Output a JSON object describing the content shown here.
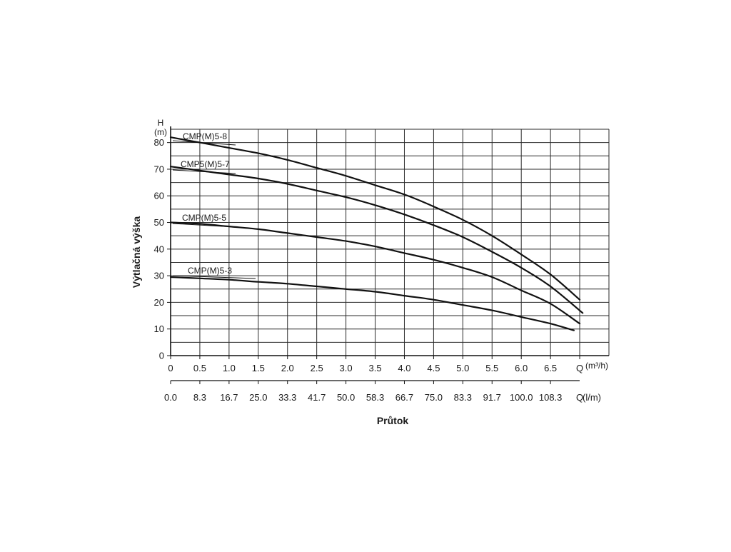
{
  "chart_data": {
    "type": "line",
    "xlabel": "Průtok",
    "ylabel": "Výtlačná výška",
    "y_axis_symbol": "H",
    "y_unit": "(m)",
    "x_axis_symbol": "Q",
    "x_unit_primary": "(m³/h)",
    "x_unit_secondary": "(l/m)",
    "xlim": [
      0,
      7.5
    ],
    "ylim": [
      0,
      85
    ],
    "grid": true,
    "legend": "inline labels on curves",
    "y_ticks": [
      "0",
      "10",
      "20",
      "30",
      "40",
      "50",
      "60",
      "70",
      "80"
    ],
    "x_ticks_primary": [
      "0",
      "0.5",
      "1.0",
      "1.5",
      "2.0",
      "2.5",
      "3.0",
      "3.5",
      "4.0",
      "4.5",
      "5.0",
      "5.5",
      "6.0",
      "6.5",
      "Q"
    ],
    "x_ticks_secondary": [
      "0.0",
      "8.3",
      "16.7",
      "25.0",
      "33.3",
      "41.7",
      "50.0",
      "58.3",
      "66.7",
      "75.0",
      "83.3",
      "91.7",
      "100.0",
      "108.3",
      "Q"
    ],
    "series": [
      {
        "name": "CMP(M)5-8",
        "color": "#111111",
        "x": [
          0,
          0.5,
          1.0,
          1.5,
          2.0,
          2.5,
          3.0,
          3.5,
          4.0,
          4.5,
          5.0,
          5.5,
          6.0,
          6.5,
          7.0
        ],
        "y": [
          82,
          80,
          78,
          76,
          73.5,
          70.5,
          67.5,
          64,
          60.5,
          56,
          51,
          45,
          38,
          30.5,
          21
        ]
      },
      {
        "name": "CMP5(M)5-7",
        "color": "#111111",
        "x": [
          0,
          0.5,
          1.0,
          1.5,
          2.0,
          2.5,
          3.0,
          3.5,
          4.0,
          4.5,
          5.0,
          5.5,
          6.0,
          6.5,
          7.05
        ],
        "y": [
          71,
          69.5,
          68,
          66.5,
          64.5,
          62,
          59.5,
          56.5,
          53,
          49,
          44.5,
          39,
          33,
          26,
          16
        ]
      },
      {
        "name": "CMP(M)5-5",
        "color": "#111111",
        "x": [
          0,
          0.5,
          1.0,
          1.5,
          2.0,
          2.5,
          3.0,
          3.5,
          4.0,
          4.5,
          5.0,
          5.5,
          6.0,
          6.5,
          7.0
        ],
        "y": [
          50,
          49.5,
          48.5,
          47.5,
          46,
          44.5,
          43,
          41,
          38.5,
          36,
          33,
          29.5,
          24.5,
          19.5,
          12
        ]
      },
      {
        "name": "CMP(M)5-3",
        "color": "#111111",
        "x": [
          0,
          0.5,
          1.0,
          1.5,
          2.0,
          2.5,
          3.0,
          3.5,
          4.0,
          4.5,
          5.0,
          5.5,
          6.0,
          6.5,
          6.9
        ],
        "y": [
          29.5,
          29,
          28.5,
          27.7,
          27,
          26,
          25,
          24,
          22.5,
          21,
          19,
          17,
          14.5,
          12,
          9.5
        ]
      }
    ]
  }
}
